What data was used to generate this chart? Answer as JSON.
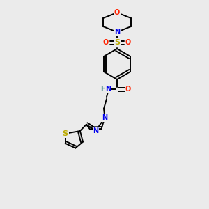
{
  "bg_color": "#ebebeb",
  "atom_colors": {
    "C": "#000000",
    "N": "#0000ee",
    "O": "#ff2200",
    "S": "#bbaa00",
    "H": "#448888"
  },
  "font_size": 7.0,
  "line_width": 1.4
}
